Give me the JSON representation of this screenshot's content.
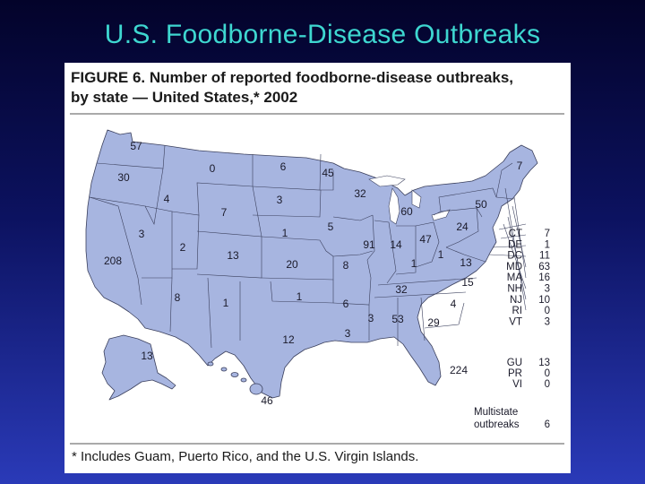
{
  "slide": {
    "title": "U.S. Foodborne-Disease Outbreaks"
  },
  "figure": {
    "caption_line1": "FIGURE 6. Number of reported foodborne-disease outbreaks,",
    "caption_line2": "by state — United States,* 2002",
    "footnote": "* Includes Guam, Puerto Rico, and the U.S. Virgin Islands."
  },
  "map_labels": [
    {
      "state": "WA",
      "value": "57"
    },
    {
      "state": "OR",
      "value": "30"
    },
    {
      "state": "ID",
      "value": "4"
    },
    {
      "state": "MT",
      "value": "0"
    },
    {
      "state": "ND",
      "value": "6"
    },
    {
      "state": "MN",
      "value": "45"
    },
    {
      "state": "WY",
      "value": "7"
    },
    {
      "state": "SD",
      "value": "3"
    },
    {
      "state": "WI",
      "value": "32"
    },
    {
      "state": "MI",
      "value": "60"
    },
    {
      "state": "ME",
      "value": "7"
    },
    {
      "state": "NY",
      "value": "50"
    },
    {
      "state": "NV",
      "value": "3"
    },
    {
      "state": "UT",
      "value": "2"
    },
    {
      "state": "CO",
      "value": "13"
    },
    {
      "state": "NE",
      "value": "1"
    },
    {
      "state": "IA",
      "value": "5"
    },
    {
      "state": "IL",
      "value": "91"
    },
    {
      "state": "IN",
      "value": "14"
    },
    {
      "state": "OH",
      "value": "47"
    },
    {
      "state": "PA",
      "value": "24"
    },
    {
      "state": "CA",
      "value": "208"
    },
    {
      "state": "KS",
      "value": "20"
    },
    {
      "state": "MO",
      "value": "8"
    },
    {
      "state": "KY",
      "value": "1"
    },
    {
      "state": "WV",
      "value": "1"
    },
    {
      "state": "VA",
      "value": "13"
    },
    {
      "state": "AZ",
      "value": "8"
    },
    {
      "state": "NM",
      "value": "1"
    },
    {
      "state": "OK",
      "value": "1"
    },
    {
      "state": "AR",
      "value": "6"
    },
    {
      "state": "TN",
      "value": "32"
    },
    {
      "state": "NC",
      "value": "15"
    },
    {
      "state": "SC",
      "value": "4"
    },
    {
      "state": "MS",
      "value": "3"
    },
    {
      "state": "AL",
      "value": "53"
    },
    {
      "state": "GA",
      "value": "29"
    },
    {
      "state": "TX",
      "value": "12"
    },
    {
      "state": "LA",
      "value": "3"
    },
    {
      "state": "FL",
      "value": "224"
    },
    {
      "state": "AK",
      "value": "13"
    },
    {
      "state": "HI",
      "value": "46"
    }
  ],
  "east_table": [
    {
      "state": "CT",
      "value": "7"
    },
    {
      "state": "DE",
      "value": "1"
    },
    {
      "state": "DC",
      "value": "11"
    },
    {
      "state": "MD",
      "value": "63"
    },
    {
      "state": "MA",
      "value": "16"
    },
    {
      "state": "NH",
      "value": "3"
    },
    {
      "state": "NJ",
      "value": "10"
    },
    {
      "state": "RI",
      "value": "0"
    },
    {
      "state": "VT",
      "value": "3"
    }
  ],
  "territory_table": [
    {
      "state": "GU",
      "value": "13"
    },
    {
      "state": "PR",
      "value": "0"
    },
    {
      "state": "VI",
      "value": "0"
    }
  ],
  "multistate": {
    "label_line1": "Multistate",
    "label_line2": "outbreaks",
    "value": "6"
  },
  "colors": {
    "land": "#a7b5e0",
    "border": "#3a3f5c",
    "title": "#3ed7d0"
  }
}
